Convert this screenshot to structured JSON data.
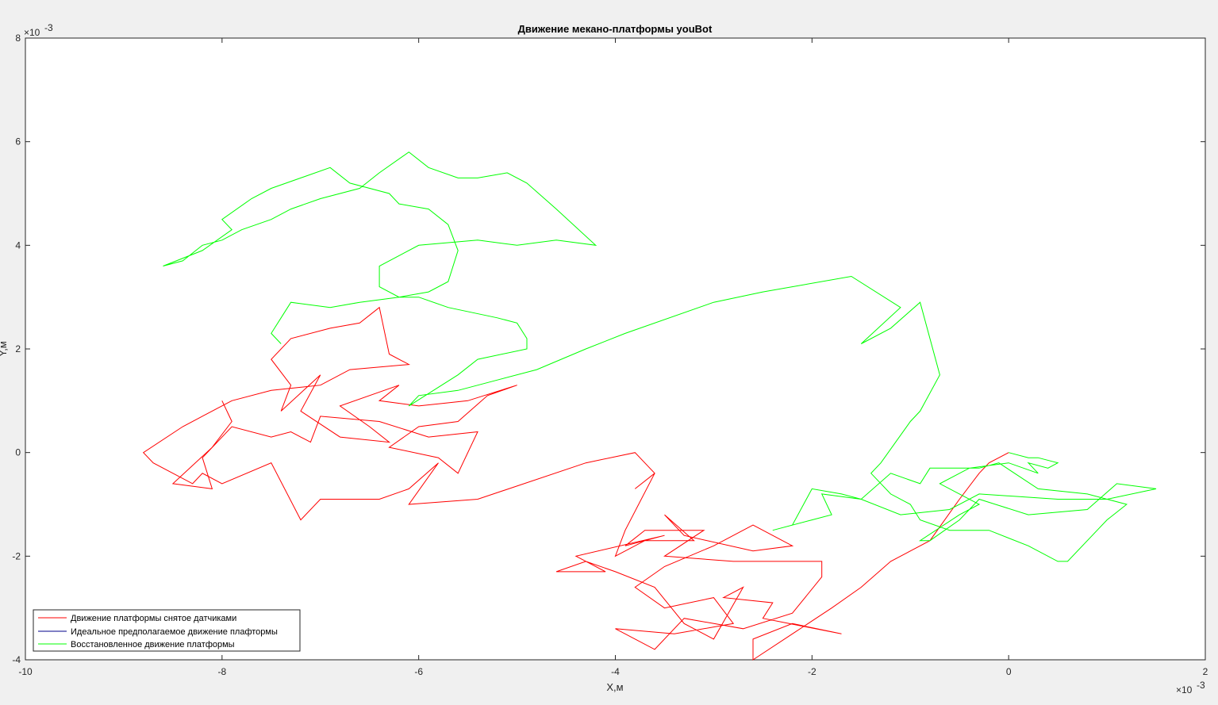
{
  "chart_data": {
    "type": "line",
    "title": "Движение мекано-платформы youBot",
    "xlabel": "X,м",
    "ylabel": "Y,м",
    "xlim": [
      -10,
      2
    ],
    "ylim": [
      -4,
      8
    ],
    "x_scale_label": "×10",
    "x_scale_exp": "-3",
    "y_scale_label": "×10",
    "y_scale_exp": "-3",
    "xticks": [
      -10,
      -8,
      -6,
      -4,
      -2,
      0,
      2
    ],
    "yticks": [
      -4,
      -2,
      0,
      2,
      4,
      6,
      8
    ],
    "xtick_labels": [
      "-10",
      "-8",
      "-6",
      "-4",
      "-2",
      "0",
      "2"
    ],
    "ytick_labels": [
      "-4",
      "-2",
      "0",
      "2",
      "4",
      "6",
      "8"
    ],
    "grid": false,
    "legend_position": "bottom-left",
    "legend": [
      {
        "label": "Движение платформы снятое датчиками",
        "color": "#ff0000"
      },
      {
        "label": "Идеальное предполагаемое движение плафтормы",
        "color": "#00008b"
      },
      {
        "label": "Восстановленное движение платформы",
        "color": "#00ff00"
      }
    ],
    "series": [
      {
        "name": "Движение платформы снятое датчиками",
        "color": "#ff0000",
        "points": [
          [
            0,
            0
          ],
          [
            -0.2,
            -0.2
          ],
          [
            -0.3,
            -0.4
          ],
          [
            -0.5,
            -0.9
          ],
          [
            -0.8,
            -1.7
          ],
          [
            -1.2,
            -2.1
          ],
          [
            -1.5,
            -2.6
          ],
          [
            -1.8,
            -3.0
          ],
          [
            -2.2,
            -3.5
          ],
          [
            -2.6,
            -4.0
          ],
          [
            -2.6,
            -3.6
          ],
          [
            -2.2,
            -3.3
          ],
          [
            -1.7,
            -3.5
          ],
          [
            -2.5,
            -3.2
          ],
          [
            -2.4,
            -2.9
          ],
          [
            -2.9,
            -2.8
          ],
          [
            -2.7,
            -2.6
          ],
          [
            -3.0,
            -3.6
          ],
          [
            -3.3,
            -3.3
          ],
          [
            -3.6,
            -2.6
          ],
          [
            -4.0,
            -2.3
          ],
          [
            -4.3,
            -2.1
          ],
          [
            -4.6,
            -2.3
          ],
          [
            -4.1,
            -2.3
          ],
          [
            -4.4,
            -2.0
          ],
          [
            -3.5,
            -1.6
          ],
          [
            -3.9,
            -1.8
          ],
          [
            -3.7,
            -1.5
          ],
          [
            -3.1,
            -1.5
          ],
          [
            -3.5,
            -2.0
          ],
          [
            -2.8,
            -2.1
          ],
          [
            -1.9,
            -2.1
          ],
          [
            -1.9,
            -2.4
          ],
          [
            -2.2,
            -3.1
          ],
          [
            -2.7,
            -3.4
          ],
          [
            -3.3,
            -3.2
          ],
          [
            -3.6,
            -3.8
          ],
          [
            -4.0,
            -3.4
          ],
          [
            -3.4,
            -3.5
          ],
          [
            -2.8,
            -3.3
          ],
          [
            -3.0,
            -2.8
          ],
          [
            -3.5,
            -3.0
          ],
          [
            -3.8,
            -2.6
          ],
          [
            -3.5,
            -2.2
          ],
          [
            -3.0,
            -1.8
          ],
          [
            -2.6,
            -1.4
          ],
          [
            -2.2,
            -1.8
          ],
          [
            -2.6,
            -1.9
          ],
          [
            -3.3,
            -1.6
          ],
          [
            -3.5,
            -1.2
          ],
          [
            -3.2,
            -1.7
          ],
          [
            -3.7,
            -1.7
          ],
          [
            -4.0,
            -2.0
          ],
          [
            -3.9,
            -1.5
          ],
          [
            -3.6,
            -0.4
          ],
          [
            -3.8,
            -0.7
          ],
          [
            -3.6,
            -0.4
          ],
          [
            -3.8,
            0.0
          ],
          [
            -4.3,
            -0.2
          ],
          [
            -5.4,
            -0.9
          ],
          [
            -6.1,
            -1.0
          ],
          [
            -5.8,
            -0.2
          ],
          [
            -6.1,
            -0.7
          ],
          [
            -6.4,
            -0.9
          ],
          [
            -7.0,
            -0.9
          ],
          [
            -7.2,
            -1.3
          ],
          [
            -7.5,
            -0.2
          ],
          [
            -8.0,
            -0.6
          ],
          [
            -8.2,
            -0.4
          ],
          [
            -8.3,
            -0.6
          ],
          [
            -8.7,
            -0.2
          ],
          [
            -8.8,
            0.0
          ],
          [
            -8.4,
            0.5
          ],
          [
            -7.9,
            1.0
          ],
          [
            -7.5,
            1.2
          ],
          [
            -7.0,
            1.3
          ],
          [
            -6.7,
            1.6
          ],
          [
            -6.1,
            1.7
          ],
          [
            -6.3,
            1.9
          ],
          [
            -6.4,
            2.8
          ],
          [
            -6.6,
            2.5
          ],
          [
            -6.9,
            2.4
          ],
          [
            -7.3,
            2.2
          ],
          [
            -7.5,
            1.8
          ],
          [
            -7.3,
            1.3
          ],
          [
            -7.4,
            0.8
          ],
          [
            -7.0,
            1.5
          ],
          [
            -7.2,
            0.8
          ],
          [
            -6.8,
            0.3
          ],
          [
            -6.3,
            0.2
          ],
          [
            -6.5,
            0.5
          ],
          [
            -6.8,
            0.9
          ],
          [
            -6.2,
            1.3
          ],
          [
            -6.4,
            1.0
          ],
          [
            -6.0,
            0.9
          ],
          [
            -5.5,
            1.0
          ],
          [
            -5.0,
            1.3
          ],
          [
            -5.3,
            1.1
          ],
          [
            -5.6,
            0.6
          ],
          [
            -6.0,
            0.5
          ],
          [
            -6.3,
            0.1
          ],
          [
            -5.8,
            -0.1
          ],
          [
            -5.6,
            -0.4
          ],
          [
            -5.4,
            0.4
          ],
          [
            -5.9,
            0.3
          ],
          [
            -6.4,
            0.6
          ],
          [
            -7.0,
            0.7
          ],
          [
            -7.1,
            0.2
          ],
          [
            -7.3,
            0.4
          ],
          [
            -7.5,
            0.3
          ],
          [
            -7.9,
            0.5
          ],
          [
            -8.2,
            -0.1
          ],
          [
            -8.1,
            -0.7
          ],
          [
            -8.5,
            -0.6
          ],
          [
            -8.1,
            0.1
          ],
          [
            -7.9,
            0.6
          ],
          [
            -8.0,
            1.0
          ]
        ]
      },
      {
        "name": "Восстановленное движение платформы",
        "color": "#00ff00",
        "points": [
          [
            0,
            0
          ],
          [
            0.2,
            -0.1
          ],
          [
            0.3,
            -0.1
          ],
          [
            0.5,
            -0.2
          ],
          [
            0.4,
            -0.3
          ],
          [
            0.2,
            -0.2
          ],
          [
            0.3,
            -0.4
          ],
          [
            0.0,
            -0.2
          ],
          [
            -0.4,
            -0.3
          ],
          [
            -0.7,
            -0.6
          ],
          [
            -0.3,
            -1.0
          ],
          [
            -0.5,
            -1.2
          ],
          [
            -0.9,
            -1.7
          ],
          [
            -0.8,
            -1.7
          ],
          [
            -0.5,
            -1.3
          ],
          [
            -0.3,
            -0.9
          ],
          [
            0.2,
            -1.2
          ],
          [
            0.8,
            -1.1
          ],
          [
            1.1,
            -0.6
          ],
          [
            1.5,
            -0.7
          ],
          [
            1.0,
            -0.9
          ],
          [
            0.5,
            -0.9
          ],
          [
            -0.3,
            -0.8
          ],
          [
            -0.6,
            -1.1
          ],
          [
            -1.1,
            -1.2
          ],
          [
            -1.5,
            -0.9
          ],
          [
            -1.9,
            -0.8
          ],
          [
            -1.8,
            -1.2
          ],
          [
            -2.0,
            -1.3
          ],
          [
            -2.4,
            -1.5
          ],
          [
            -2.2,
            -1.4
          ],
          [
            -2.0,
            -0.7
          ],
          [
            -1.7,
            -0.8
          ],
          [
            -1.5,
            -0.9
          ],
          [
            -1.2,
            -0.4
          ],
          [
            -0.9,
            -0.6
          ],
          [
            -0.8,
            -0.3
          ],
          [
            -0.3,
            -0.3
          ],
          [
            -0.1,
            -0.2
          ],
          [
            0.3,
            -0.7
          ],
          [
            0.8,
            -0.8
          ],
          [
            1.2,
            -1.0
          ],
          [
            1.0,
            -1.3
          ],
          [
            0.9,
            -1.5
          ],
          [
            0.6,
            -2.1
          ],
          [
            0.5,
            -2.1
          ],
          [
            0.2,
            -1.8
          ],
          [
            -0.2,
            -1.5
          ],
          [
            -0.6,
            -1.5
          ],
          [
            -0.9,
            -1.3
          ],
          [
            -1.0,
            -1.0
          ],
          [
            -1.2,
            -0.8
          ],
          [
            -1.4,
            -0.4
          ],
          [
            -1.3,
            -0.2
          ],
          [
            -1.0,
            0.6
          ],
          [
            -0.9,
            0.8
          ],
          [
            -0.7,
            1.5
          ],
          [
            -0.9,
            2.9
          ],
          [
            -1.2,
            2.4
          ],
          [
            -1.5,
            2.1
          ],
          [
            -1.1,
            2.8
          ],
          [
            -1.6,
            3.4
          ],
          [
            -2.5,
            3.1
          ],
          [
            -3.0,
            2.9
          ],
          [
            -3.9,
            2.3
          ],
          [
            -4.3,
            2.0
          ],
          [
            -4.8,
            1.6
          ],
          [
            -5.2,
            1.4
          ],
          [
            -5.6,
            1.2
          ],
          [
            -6.0,
            1.1
          ],
          [
            -6.1,
            0.9
          ],
          [
            -5.6,
            1.5
          ],
          [
            -5.4,
            1.8
          ],
          [
            -4.9,
            2.0
          ],
          [
            -4.9,
            2.2
          ],
          [
            -5.0,
            2.5
          ],
          [
            -5.2,
            2.6
          ],
          [
            -5.7,
            2.8
          ],
          [
            -6.0,
            3.0
          ],
          [
            -6.2,
            3.0
          ],
          [
            -6.4,
            3.2
          ],
          [
            -6.4,
            3.6
          ],
          [
            -6.0,
            4.0
          ],
          [
            -5.4,
            4.1
          ],
          [
            -5.0,
            4.0
          ],
          [
            -4.6,
            4.1
          ],
          [
            -4.2,
            4.0
          ],
          [
            -4.6,
            4.7
          ],
          [
            -4.9,
            5.2
          ],
          [
            -5.1,
            5.4
          ],
          [
            -5.4,
            5.3
          ],
          [
            -5.6,
            5.3
          ],
          [
            -5.9,
            5.5
          ],
          [
            -6.1,
            5.8
          ],
          [
            -6.4,
            5.4
          ],
          [
            -6.6,
            5.1
          ],
          [
            -7.0,
            4.9
          ],
          [
            -7.3,
            4.7
          ],
          [
            -7.5,
            4.5
          ],
          [
            -7.8,
            4.3
          ],
          [
            -8.0,
            4.1
          ],
          [
            -8.2,
            4.0
          ],
          [
            -8.4,
            3.7
          ],
          [
            -8.6,
            3.6
          ],
          [
            -8.2,
            3.9
          ],
          [
            -7.9,
            4.3
          ],
          [
            -8.0,
            4.5
          ],
          [
            -7.7,
            4.9
          ],
          [
            -7.5,
            5.1
          ],
          [
            -7.2,
            5.3
          ],
          [
            -6.9,
            5.5
          ],
          [
            -6.7,
            5.2
          ],
          [
            -6.3,
            5.0
          ],
          [
            -6.2,
            4.8
          ],
          [
            -5.9,
            4.7
          ],
          [
            -5.7,
            4.4
          ],
          [
            -5.6,
            3.9
          ],
          [
            -5.7,
            3.3
          ],
          [
            -5.9,
            3.1
          ],
          [
            -6.2,
            3.0
          ],
          [
            -6.6,
            2.9
          ],
          [
            -6.9,
            2.8
          ],
          [
            -7.3,
            2.9
          ],
          [
            -7.4,
            2.6
          ],
          [
            -7.5,
            2.3
          ],
          [
            -7.4,
            2.1
          ]
        ]
      }
    ]
  }
}
